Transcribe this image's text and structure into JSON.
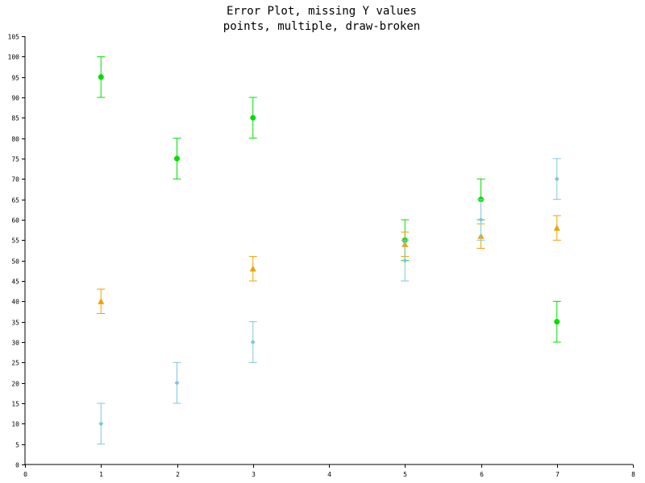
{
  "chart_data": {
    "type": "scatter",
    "title": "Error Plot, missing Y values",
    "subtitle": "points, multiple, draw-broken",
    "xlabel": "",
    "ylabel": "",
    "xlim": [
      0,
      8
    ],
    "ylim": [
      0,
      105
    ],
    "x_ticks": [
      0,
      1,
      2,
      3,
      4,
      5,
      6,
      7,
      8
    ],
    "y_ticks": [
      0,
      5,
      10,
      15,
      20,
      25,
      30,
      35,
      40,
      45,
      50,
      55,
      60,
      65,
      70,
      75,
      80,
      85,
      90,
      95,
      100,
      105
    ],
    "grid": false,
    "legend": "none",
    "series": [
      {
        "color": "#00e000",
        "marker": "circle",
        "points": [
          {
            "x": 1,
            "y": 95,
            "err": 5
          },
          {
            "x": 2,
            "y": 75,
            "err": 5
          },
          {
            "x": 3,
            "y": 85,
            "err": 5
          },
          {
            "x": 5,
            "y": 55,
            "err": 5
          },
          {
            "x": 6,
            "y": 65,
            "err": 5
          },
          {
            "x": 7,
            "y": 35,
            "err": 5
          }
        ]
      },
      {
        "color": "#f0a000",
        "marker": "triangle",
        "points": [
          {
            "x": 1,
            "y": 40,
            "err": 3
          },
          {
            "x": 3,
            "y": 48,
            "err": 3
          },
          {
            "x": 5,
            "y": 54,
            "err": 3
          },
          {
            "x": 6,
            "y": 56,
            "err": 3
          },
          {
            "x": 7,
            "y": 58,
            "err": 3
          }
        ]
      },
      {
        "color": "#7ec8d8",
        "marker": "diamond",
        "points": [
          {
            "x": 1,
            "y": 10,
            "err": 5
          },
          {
            "x": 2,
            "y": 20,
            "err": 5
          },
          {
            "x": 3,
            "y": 30,
            "err": 5
          },
          {
            "x": 5,
            "y": 50,
            "err": 5
          },
          {
            "x": 6,
            "y": 60,
            "err": 5
          },
          {
            "x": 7,
            "y": 70,
            "err": 5
          }
        ]
      }
    ]
  }
}
